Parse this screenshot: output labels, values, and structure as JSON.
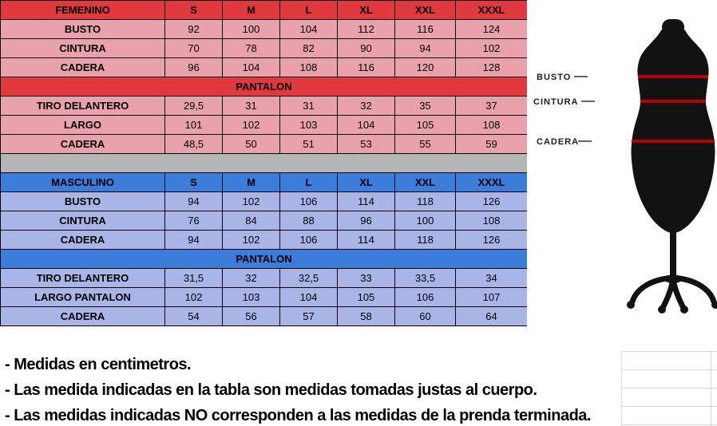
{
  "colors": {
    "femenino_header": "#e03a3e",
    "femenino_row": "#e9a2ab",
    "masculino_header": "#3c7cdb",
    "masculino_row": "#a9b5e6",
    "separator": "#b5b5b5",
    "grid_line": "#d8d8d8",
    "measure_line": "#b80000",
    "mannequin": "#121212"
  },
  "table": {
    "rows": [
      {
        "type": "header",
        "theme": "red",
        "cells": [
          "FEMENINO",
          "S",
          "M",
          "L",
          "XL",
          "XXL",
          "XXXL"
        ]
      },
      {
        "type": "data",
        "theme": "red",
        "cells": [
          "BUSTO",
          "92",
          "100",
          "104",
          "112",
          "116",
          "124"
        ]
      },
      {
        "type": "data",
        "theme": "red",
        "cells": [
          "CINTURA",
          "70",
          "78",
          "82",
          "90",
          "94",
          "102"
        ]
      },
      {
        "type": "data",
        "theme": "red",
        "cells": [
          "CADERA",
          "96",
          "104",
          "108",
          "116",
          "120",
          "128"
        ]
      },
      {
        "type": "section",
        "theme": "red",
        "label": "PANTALON"
      },
      {
        "type": "data",
        "theme": "red",
        "cells": [
          "TIRO DELANTERO",
          "29,5",
          "31",
          "31",
          "32",
          "35",
          "37"
        ]
      },
      {
        "type": "data",
        "theme": "red",
        "cells": [
          "LARGO",
          "101",
          "102",
          "103",
          "104",
          "105",
          "108"
        ]
      },
      {
        "type": "data",
        "theme": "red",
        "cells": [
          "CADERA",
          "48,5",
          "50",
          "51",
          "53",
          "55",
          "59"
        ]
      },
      {
        "type": "separator"
      },
      {
        "type": "header",
        "theme": "blue",
        "cells": [
          "MASCULINO",
          "S",
          "M",
          "L",
          "XL",
          "XXL",
          "XXXL"
        ]
      },
      {
        "type": "data",
        "theme": "blue",
        "cells": [
          "BUSTO",
          "94",
          "102",
          "106",
          "114",
          "118",
          "126"
        ]
      },
      {
        "type": "data",
        "theme": "blue",
        "cells": [
          "CINTURA",
          "76",
          "84",
          "88",
          "96",
          "100",
          "108"
        ]
      },
      {
        "type": "data",
        "theme": "blue",
        "cells": [
          "CADERA",
          "94",
          "102",
          "106",
          "114",
          "118",
          "126"
        ]
      },
      {
        "type": "section",
        "theme": "blue",
        "label": "PANTALON"
      },
      {
        "type": "data",
        "theme": "blue",
        "cells": [
          "TIRO DELANTERO",
          "31,5",
          "32",
          "32,5",
          "33",
          "33,5",
          "34"
        ]
      },
      {
        "type": "data",
        "theme": "blue",
        "cells": [
          "LARGO PANTALON",
          "102",
          "103",
          "104",
          "105",
          "106",
          "107"
        ]
      },
      {
        "type": "data",
        "theme": "blue",
        "cells": [
          "CADERA",
          "54",
          "56",
          "57",
          "58",
          "60",
          "64"
        ]
      }
    ]
  },
  "diagram": {
    "labels": {
      "bust": "BUSTO",
      "waist": "CINTURA",
      "hip": "CADERA"
    }
  },
  "notes": {
    "lines": [
      "- Medidas en centimetros.",
      "- Las medida indicadas en la tabla son medidas tomadas justas al cuerpo.",
      "- Las medidas indicadas NO corresponden a las medidas de la prenda terminada."
    ]
  }
}
